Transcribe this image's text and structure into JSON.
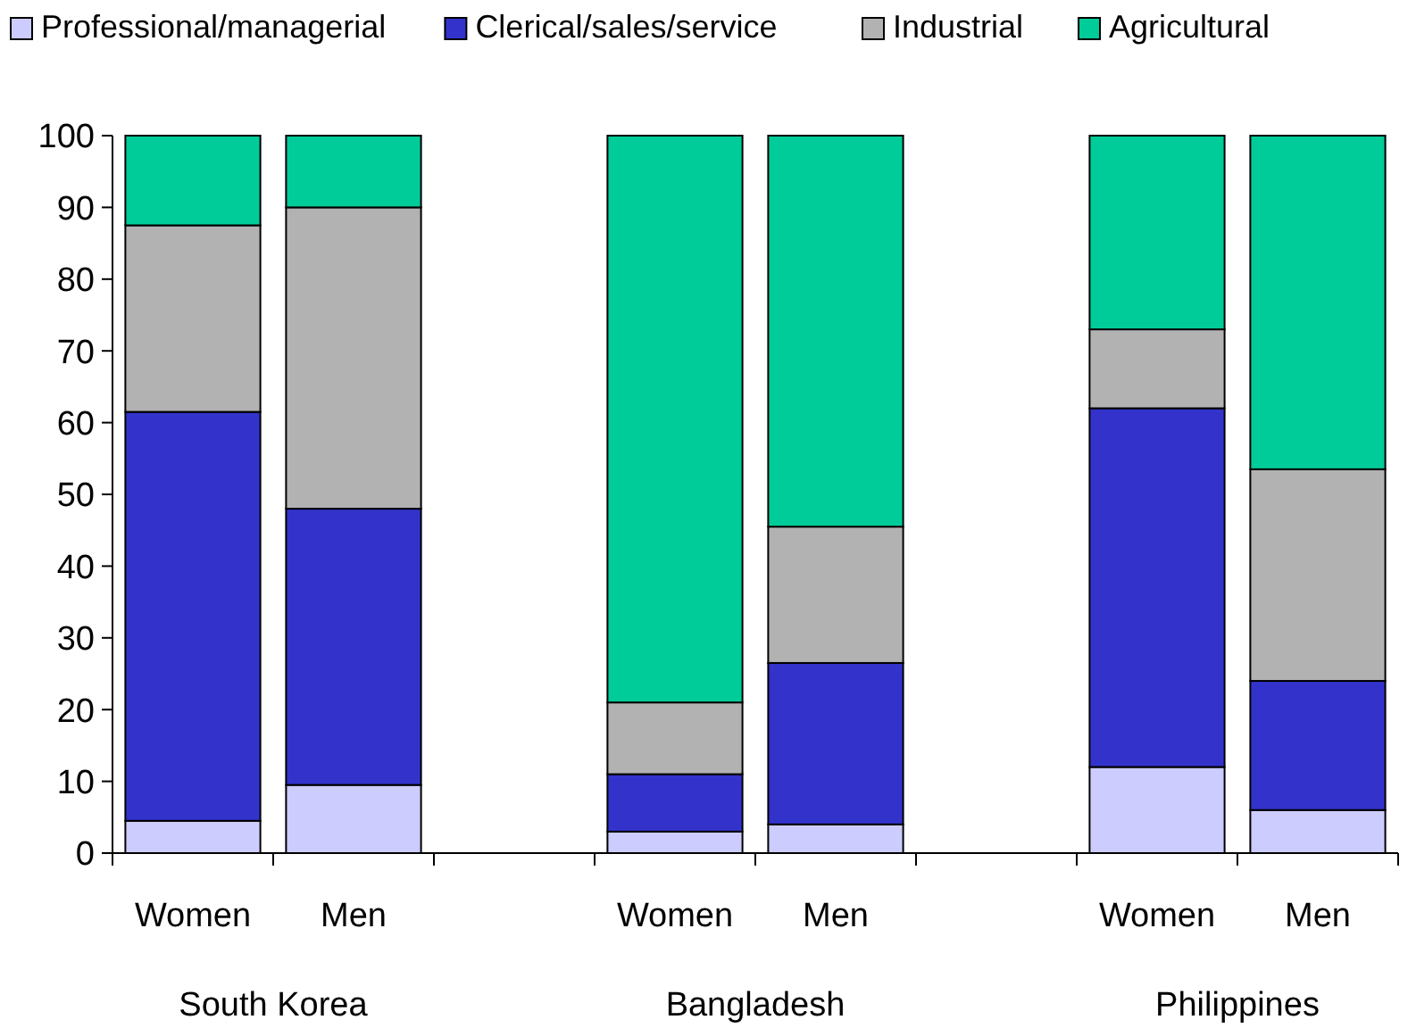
{
  "chart_data": {
    "type": "bar",
    "stacked": true,
    "categories": [
      "Women",
      "Men",
      null,
      "Women",
      "Men",
      null,
      "Women",
      "Men"
    ],
    "series": [
      {
        "name": "Professional/managerial",
        "color": "#ccccff",
        "values": [
          4.5,
          9.5,
          null,
          3,
          4,
          null,
          12,
          6
        ]
      },
      {
        "name": "Clerical/sales/service",
        "color": "#3333cc",
        "values": [
          57,
          38.5,
          null,
          8,
          22.5,
          null,
          50,
          18
        ]
      },
      {
        "name": "Industrial",
        "color": "#b2b2b2",
        "values": [
          26,
          42,
          null,
          10,
          19,
          null,
          11,
          29.5
        ]
      },
      {
        "name": "Agricultural",
        "color": "#00cc99",
        "values": [
          12.5,
          10,
          null,
          79,
          54.5,
          null,
          27,
          46.5
        ]
      }
    ],
    "ylim": [
      0,
      100
    ],
    "yticks": [
      0,
      10,
      20,
      30,
      40,
      50,
      60,
      70,
      80,
      90,
      100
    ],
    "annotations": [
      "South Korea",
      "Bangladesh",
      "Philippines"
    ],
    "legend": "top",
    "grid": false
  }
}
